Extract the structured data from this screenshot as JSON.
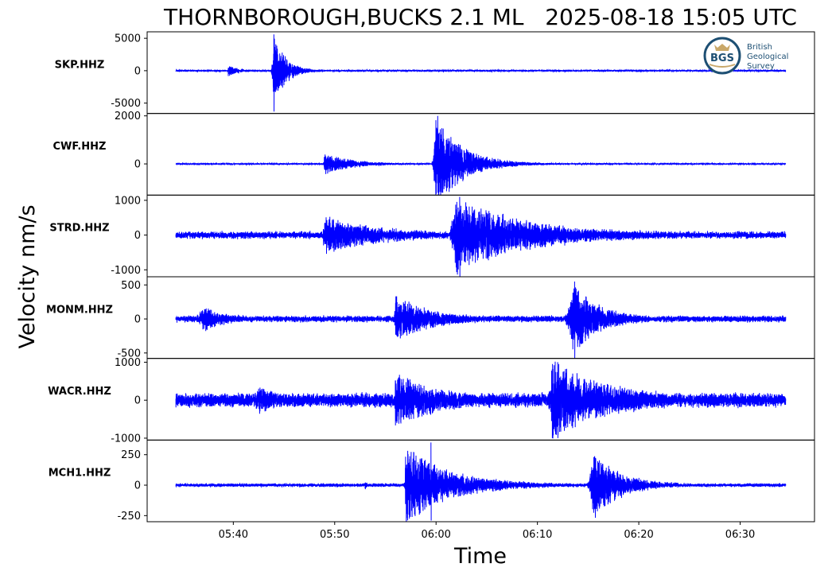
{
  "title": "THORNBOROUGH,BUCKS 2.1 ML   2025-08-18 15:05 UTC",
  "logo": {
    "name": "bgs-logo",
    "mark": "BGS",
    "line1": "British",
    "line2": "Geological",
    "line3": "Survey"
  },
  "chart_data": {
    "type": "line",
    "title": "THORNBOROUGH,BUCKS 2.1 ML   2025-08-18 15:05 UTC",
    "xlabel": "Time",
    "ylabel": "Velocity nm/s",
    "x_ticks": [
      "05:40",
      "05:50",
      "06:00",
      "06:10",
      "06:20",
      "06:30"
    ],
    "x_range": [
      "05:31:30",
      "06:37:20"
    ],
    "data_range": [
      "05:34:20",
      "06:34:30"
    ],
    "line_color": "#0000ff",
    "grid": false,
    "panels": [
      {
        "station": "SKP.HHZ",
        "ylim": [
          -6600,
          6000
        ],
        "yticks": [
          5000,
          0,
          -5000
        ],
        "ytick_labels": [
          "5000",
          "0",
          "-5000"
        ],
        "bg_amp": 120,
        "noise_amp": 250,
        "bursts": [
          {
            "t": "05:39:30",
            "peak": 900,
            "rise": 5,
            "decay": 60
          },
          {
            "t": "05:44:00",
            "peak": 5600,
            "rise": 20,
            "decay": 70
          }
        ],
        "ymax": 5600,
        "ymin": -6300,
        "peak_time": "05:44:00"
      },
      {
        "station": "CWF.HHZ",
        "ylim": [
          -1300,
          2100
        ],
        "yticks": [
          2000,
          0
        ],
        "ytick_labels": [
          "2000",
          "0"
        ],
        "bg_amp": 25,
        "noise_amp": 60,
        "bursts": [
          {
            "t": "05:49:00",
            "peak": 450,
            "rise": 10,
            "decay": 160
          },
          {
            "t": "06:00:00",
            "peak": 1950,
            "rise": 30,
            "decay": 160
          }
        ],
        "ymax": 2000,
        "ymin": -1200,
        "peak_time": "06:00:10"
      },
      {
        "station": "STRD.HHZ",
        "ylim": [
          -1200,
          1150
        ],
        "yticks": [
          1000,
          0,
          -1000
        ],
        "ytick_labels": [
          "1000",
          "0",
          "-1000"
        ],
        "bg_amp": 90,
        "noise_amp": 150,
        "bursts": [
          {
            "t": "05:49:00",
            "peak": 550,
            "rise": 20,
            "decay": 300
          },
          {
            "t": "06:02:00",
            "peak": 1100,
            "rise": 60,
            "decay": 400
          }
        ],
        "ymax": 1100,
        "ymin": -1200,
        "peak_time": "06:02:20"
      },
      {
        "station": "MONM.HHZ",
        "ylim": [
          -580,
          620
        ],
        "yticks": [
          500,
          0,
          -500
        ],
        "ytick_labels": [
          "500",
          "0",
          "-500"
        ],
        "bg_amp": 45,
        "noise_amp": 50,
        "bursts": [
          {
            "t": "05:37:00",
            "peak": 170,
            "rise": 60,
            "decay": 120
          },
          {
            "t": "05:56:00",
            "peak": 330,
            "rise": 10,
            "decay": 200
          },
          {
            "t": "06:13:30",
            "peak": 530,
            "rise": 60,
            "decay": 150
          }
        ],
        "ymax": 550,
        "ymin": -580,
        "peak_time": "06:13:40"
      },
      {
        "station": "WACR.HHZ",
        "ylim": [
          -1050,
          1100
        ],
        "yticks": [
          1000,
          0,
          -1000
        ],
        "ytick_labels": [
          "1000",
          "0",
          "-1000"
        ],
        "bg_amp": 180,
        "noise_amp": 160,
        "bursts": [
          {
            "t": "05:42:30",
            "peak": 330,
            "rise": 60,
            "decay": 100
          },
          {
            "t": "05:56:00",
            "peak": 720,
            "rise": 10,
            "decay": 220
          },
          {
            "t": "06:11:30",
            "peak": 1000,
            "rise": 40,
            "decay": 300
          }
        ],
        "ymax": 1000,
        "ymin": -1000,
        "peak_time": "06:12:00"
      },
      {
        "station": "MCH1.HHZ",
        "ylim": [
          -300,
          370
        ],
        "yticks": [
          250,
          0,
          -250
        ],
        "ytick_labels": [
          "250",
          "0",
          "-250"
        ],
        "bg_amp": 12,
        "noise_amp": 25,
        "bursts": [
          {
            "t": "05:53:00",
            "peak": 40,
            "rise": 3,
            "decay": 10
          },
          {
            "t": "05:57:00",
            "peak": 330,
            "rise": 10,
            "decay": 260
          },
          {
            "t": "06:15:30",
            "peak": 300,
            "rise": 40,
            "decay": 150
          }
        ],
        "ymax": 350,
        "ymin": -290,
        "peak_time": "05:59:30"
      }
    ]
  }
}
